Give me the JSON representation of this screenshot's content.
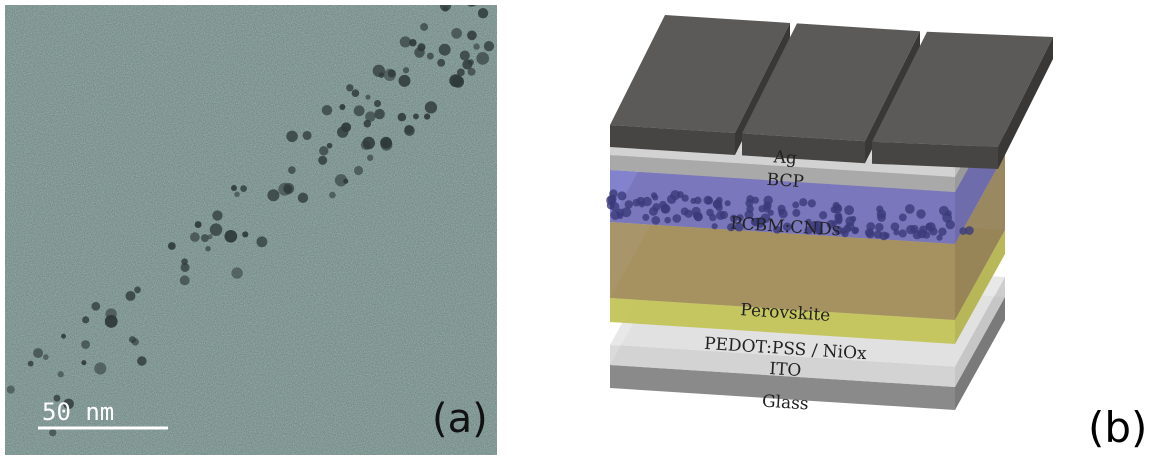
{
  "panel_a": {
    "scale_bar": "50 nm",
    "label": "(a)"
  },
  "panel_b": {
    "layers": [
      "Ag",
      "BCP",
      "PCBM:CNDs",
      "Perovskite",
      "PEDOT:PSS / NiOx",
      "ITO",
      "Glass"
    ],
    "label": "(b)"
  }
}
